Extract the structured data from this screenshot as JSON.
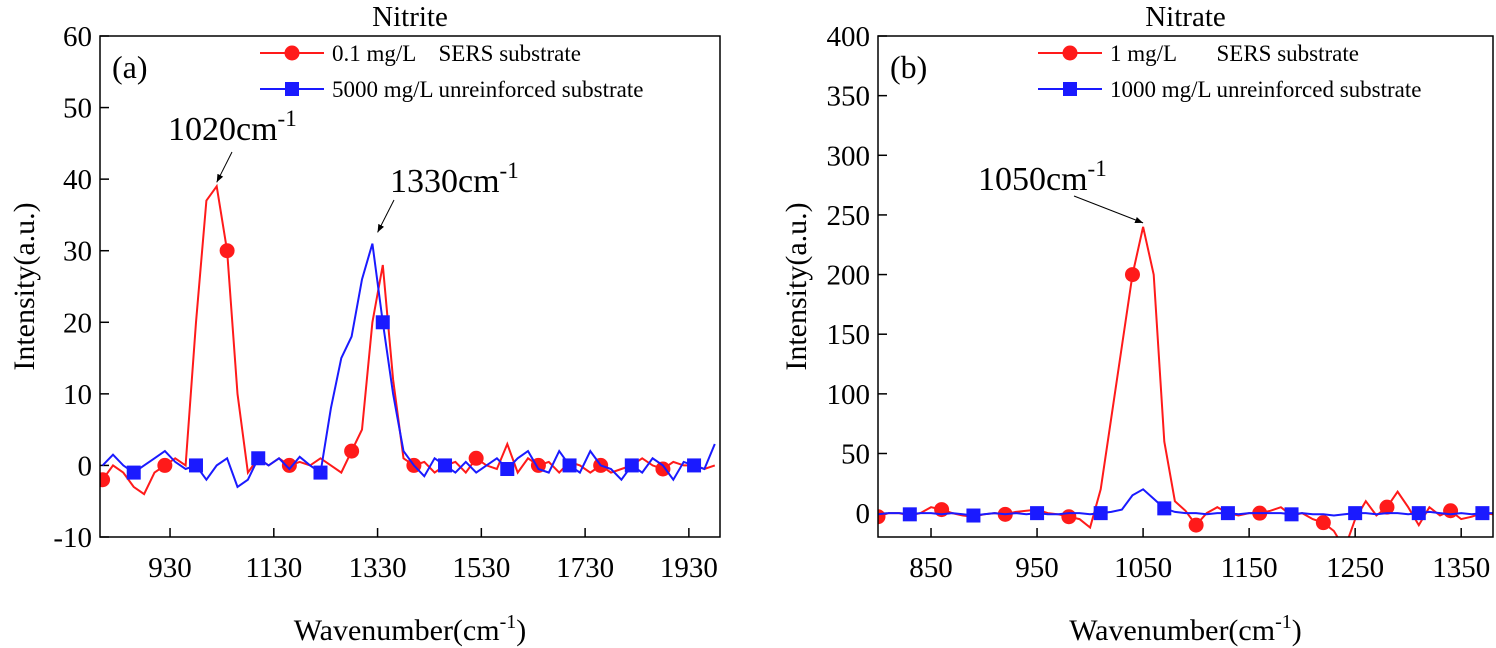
{
  "chart_data": [
    {
      "type": "line",
      "title": "Nitrite",
      "panel_label": "(a)",
      "xlabel": [
        "Wavenumber(cm",
        "-1",
        ")"
      ],
      "ylabel": "Intensity(a.u.)",
      "xlim": [
        795,
        1990
      ],
      "ylim": [
        -10,
        60
      ],
      "xticks": [
        930,
        1130,
        1330,
        1530,
        1730,
        1930
      ],
      "yticks": [
        -10,
        0,
        10,
        20,
        30,
        40,
        50,
        60
      ],
      "legend": "upper right",
      "x": [
        800,
        820,
        840,
        860,
        880,
        900,
        920,
        940,
        960,
        980,
        1000,
        1020,
        1040,
        1060,
        1080,
        1100,
        1120,
        1140,
        1160,
        1180,
        1200,
        1220,
        1240,
        1260,
        1280,
        1300,
        1320,
        1340,
        1360,
        1380,
        1400,
        1420,
        1440,
        1460,
        1480,
        1500,
        1520,
        1540,
        1560,
        1580,
        1600,
        1620,
        1640,
        1660,
        1680,
        1700,
        1720,
        1740,
        1760,
        1780,
        1800,
        1820,
        1840,
        1860,
        1880,
        1900,
        1920,
        1940,
        1960,
        1980
      ],
      "series": [
        {
          "name": "0.1 mg/L    SERS substrate",
          "color": "#ff1a1a",
          "marker": "circle",
          "values": [
            -2,
            0,
            -1,
            -3,
            -4,
            -1,
            0,
            1,
            0,
            20,
            37,
            39,
            30,
            10,
            -1,
            1,
            0,
            1,
            0,
            0.5,
            0,
            1,
            0,
            -1,
            2,
            5,
            20,
            28,
            12,
            1,
            0,
            0.5,
            -1,
            0,
            0.5,
            -1,
            1,
            0,
            -0.5,
            3,
            -1,
            1,
            0,
            0.5,
            -1,
            0.5,
            0,
            -1,
            0,
            -1,
            -0.5,
            0,
            1,
            0,
            -0.5,
            0.5,
            0,
            0,
            -0.5,
            0
          ]
        },
        {
          "name": "5000 mg/L unreinforced substrate",
          "color": "#1a1aff",
          "marker": "square",
          "values": [
            0,
            1.5,
            0,
            -1,
            0,
            1,
            2,
            0.5,
            -0.5,
            0,
            -2,
            0,
            1,
            -3,
            -2,
            1,
            0,
            1,
            -0.5,
            1.2,
            0,
            -1,
            8,
            15,
            18,
            26,
            31,
            20,
            10,
            2,
            0,
            -1.5,
            1,
            0,
            -1,
            0.5,
            -1,
            0,
            1,
            -0.5,
            1,
            2,
            -0.5,
            -1,
            2,
            0,
            -1,
            2,
            0,
            -0.5,
            -2,
            0,
            -1,
            1,
            0,
            -2,
            0.5,
            0,
            -0.5,
            3
          ]
        }
      ],
      "annotations": [
        {
          "text": "1020cm",
          "sup": "-1",
          "x": 1020,
          "y": 39
        },
        {
          "text": "1330cm",
          "sup": "-1",
          "x": 1330,
          "y": 32
        }
      ]
    },
    {
      "type": "line",
      "title": "Nitrate",
      "panel_label": "(b)",
      "xlabel": [
        "Wavenumber(cm",
        "-1",
        ")"
      ],
      "ylabel": "Intensity(a.u.)",
      "xlim": [
        800,
        1380
      ],
      "ylim": [
        -20,
        400
      ],
      "xticks": [
        850,
        950,
        1050,
        1150,
        1250,
        1350
      ],
      "yticks": [
        0,
        50,
        100,
        150,
        200,
        250,
        300,
        350,
        400
      ],
      "legend": "upper right",
      "x": [
        800,
        810,
        820,
        830,
        840,
        850,
        860,
        870,
        880,
        890,
        900,
        910,
        920,
        930,
        940,
        950,
        960,
        970,
        980,
        990,
        1000,
        1010,
        1020,
        1030,
        1040,
        1050,
        1060,
        1070,
        1080,
        1090,
        1100,
        1110,
        1120,
        1130,
        1140,
        1150,
        1160,
        1170,
        1180,
        1190,
        1200,
        1210,
        1220,
        1230,
        1240,
        1250,
        1260,
        1270,
        1280,
        1290,
        1300,
        1310,
        1320,
        1330,
        1340,
        1350,
        1360,
        1370,
        1380
      ],
      "series": [
        {
          "name": "1 mg/L       SERS substrate",
          "color": "#ff1a1a",
          "marker": "circle",
          "values": [
            -3,
            0,
            0,
            -2,
            0,
            5,
            3,
            0,
            -2,
            -3,
            -1,
            0,
            -1,
            1,
            2,
            3,
            0,
            -1,
            -3,
            -5,
            -12,
            20,
            80,
            140,
            200,
            240,
            200,
            60,
            10,
            2,
            -10,
            0,
            5,
            0,
            -2,
            0,
            0,
            2,
            5,
            -2,
            0,
            -5,
            -8,
            -15,
            -30,
            -5,
            10,
            -2,
            5,
            18,
            5,
            -10,
            5,
            -2,
            2,
            -5,
            -3,
            0,
            -1
          ]
        },
        {
          "name": "1000 mg/L unreinforced substrate",
          "color": "#1a1aff",
          "marker": "square",
          "values": [
            -1,
            0,
            0,
            -1,
            0,
            0,
            -1,
            0,
            -1,
            -2,
            -1,
            0,
            -1,
            0,
            -1,
            0,
            -1,
            -1,
            0,
            0,
            -1,
            0,
            1,
            3,
            15,
            20,
            12,
            4,
            1,
            0,
            0,
            -1,
            0,
            0,
            -1,
            0,
            0,
            0,
            0,
            -1,
            0,
            -1,
            -1,
            -2,
            -1,
            0,
            0,
            -1,
            0,
            0,
            -1,
            0,
            1,
            0,
            -1,
            0,
            -1,
            0,
            0
          ]
        }
      ],
      "annotations": [
        {
          "text": "1050cm",
          "sup": "-1",
          "x": 1050,
          "y": 240
        }
      ]
    }
  ]
}
